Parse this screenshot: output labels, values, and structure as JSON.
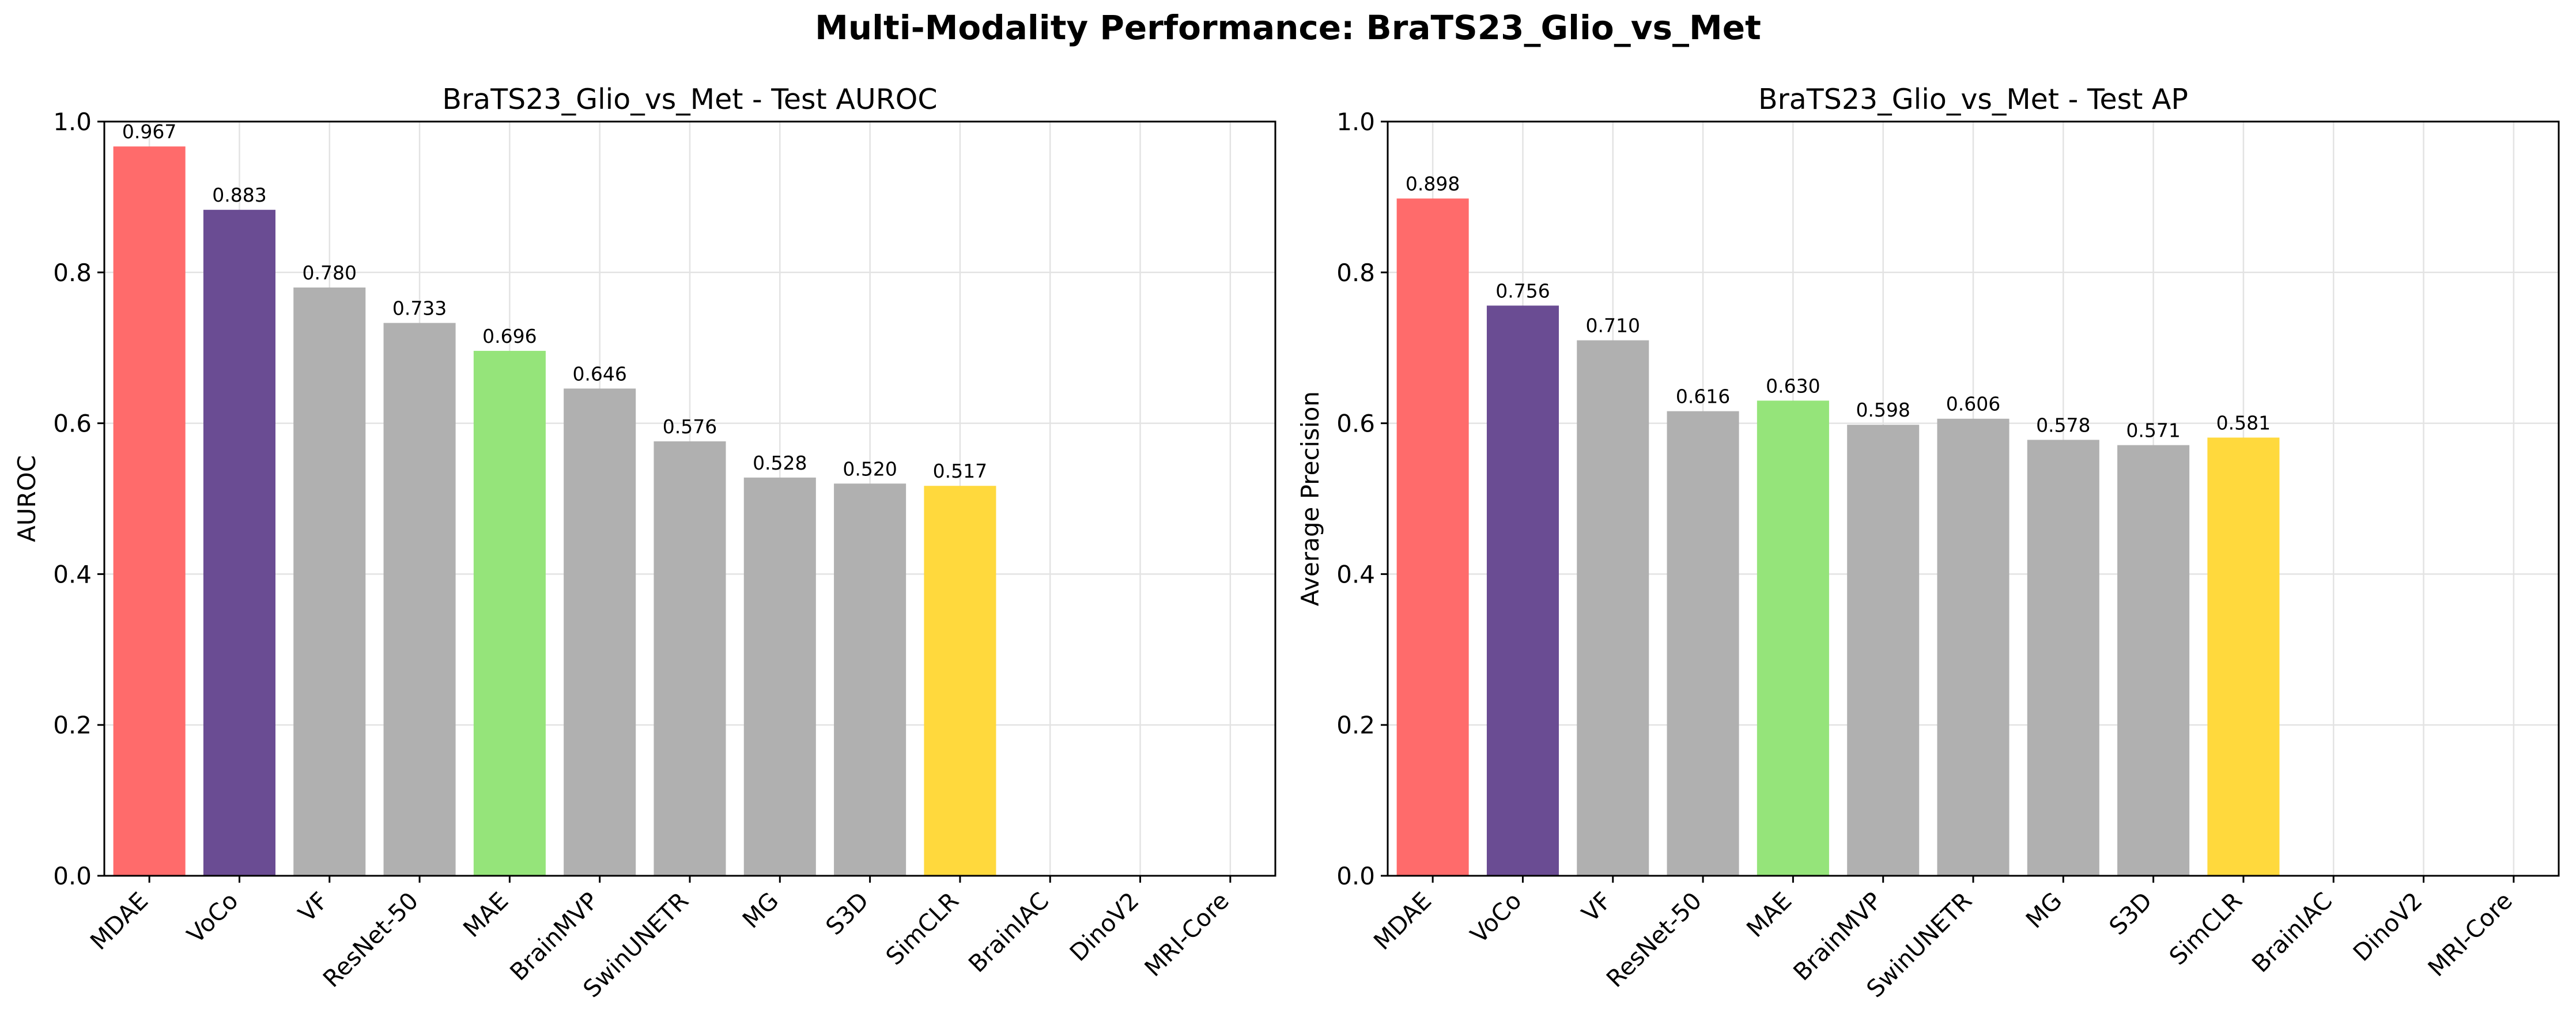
{
  "figure": {
    "suptitle": "Multi-Modality Performance: BraTS23_Glio_vs_Met"
  },
  "chart_data": [
    {
      "type": "bar",
      "title": "BraTS23_Glio_vs_Met - Test AUROC",
      "xlabel": "",
      "ylabel": "AUROC",
      "ylim": [
        0,
        1.0
      ],
      "yticks": [
        "0.0",
        "0.2",
        "0.4",
        "0.6",
        "0.8",
        "1.0"
      ],
      "grid": true,
      "categories": [
        "MDAE",
        "VoCo",
        "VF",
        "ResNet-50",
        "MAE",
        "BrainMVP",
        "SwinUNETR",
        "MG",
        "S3D",
        "SimCLR",
        "BrainIAC",
        "DinoV2",
        "MRI-Core"
      ],
      "values": [
        0.967,
        0.883,
        0.78,
        0.733,
        0.696,
        0.646,
        0.576,
        0.528,
        0.52,
        0.517,
        null,
        null,
        null
      ],
      "value_labels": [
        "0.967",
        "0.883",
        "0.780",
        "0.733",
        "0.696",
        "0.646",
        "0.576",
        "0.528",
        "0.520",
        "0.517",
        "",
        "",
        ""
      ],
      "colors": [
        "#ff6b6b",
        "#6a4c93",
        "#b0b0b0",
        "#b0b0b0",
        "#95e47a",
        "#b0b0b0",
        "#b0b0b0",
        "#b0b0b0",
        "#b0b0b0",
        "#ffd93d",
        "#b0b0b0",
        "#b0b0b0",
        "#b0b0b0"
      ]
    },
    {
      "type": "bar",
      "title": "BraTS23_Glio_vs_Met - Test AP",
      "xlabel": "",
      "ylabel": "Average Precision",
      "ylim": [
        0,
        1.0
      ],
      "yticks": [
        "0.0",
        "0.2",
        "0.4",
        "0.6",
        "0.8",
        "1.0"
      ],
      "grid": true,
      "categories": [
        "MDAE",
        "VoCo",
        "VF",
        "ResNet-50",
        "MAE",
        "BrainMVP",
        "SwinUNETR",
        "MG",
        "S3D",
        "SimCLR",
        "BrainIAC",
        "DinoV2",
        "MRI-Core"
      ],
      "values": [
        0.898,
        0.756,
        0.71,
        0.616,
        0.63,
        0.598,
        0.606,
        0.578,
        0.571,
        0.581,
        null,
        null,
        null
      ],
      "value_labels": [
        "0.898",
        "0.756",
        "0.710",
        "0.616",
        "0.630",
        "0.598",
        "0.606",
        "0.578",
        "0.571",
        "0.581",
        "",
        "",
        ""
      ],
      "colors": [
        "#ff6b6b",
        "#6a4c93",
        "#b0b0b0",
        "#b0b0b0",
        "#95e47a",
        "#b0b0b0",
        "#b0b0b0",
        "#b0b0b0",
        "#b0b0b0",
        "#ffd93d",
        "#b0b0b0",
        "#b0b0b0",
        "#b0b0b0"
      ]
    }
  ]
}
